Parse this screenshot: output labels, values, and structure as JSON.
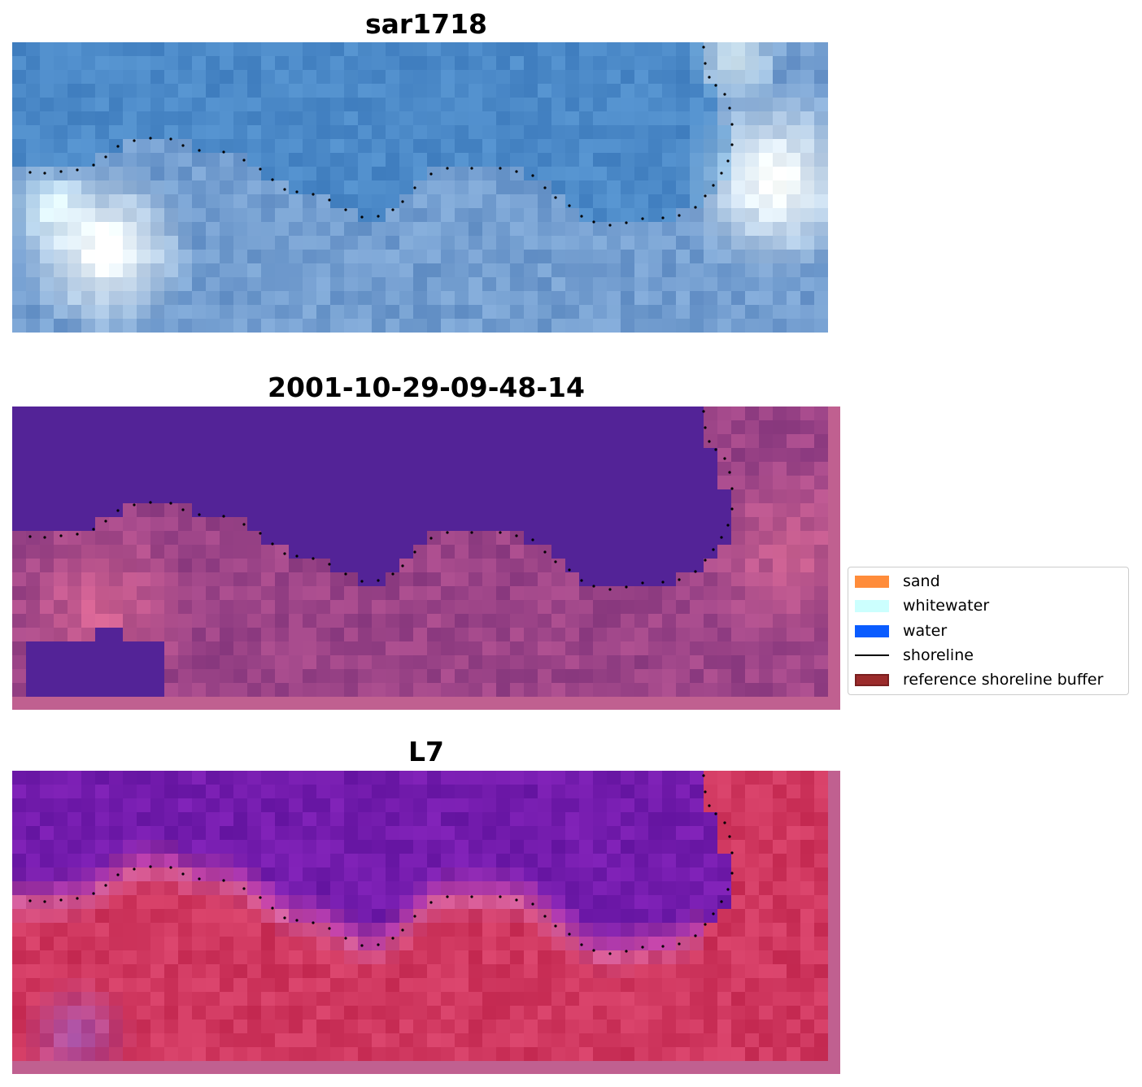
{
  "panels": [
    {
      "id": "rgb",
      "title": "sar1718",
      "content": "rgb satellite image"
    },
    {
      "id": "classified",
      "title": "2001-10-29-09-48-14",
      "content": "classified image"
    },
    {
      "id": "mndwi",
      "title": "L7",
      "content": "mndwi index image"
    }
  ],
  "legend": {
    "items": [
      {
        "label": "sand",
        "kind": "patch",
        "color": "#ff8c3a"
      },
      {
        "label": "whitewater",
        "kind": "patch",
        "color": "#ccfffe"
      },
      {
        "label": "water",
        "kind": "patch",
        "color": "#0a5cff"
      },
      {
        "label": "shoreline",
        "kind": "line",
        "color": "#000000"
      },
      {
        "label": "reference shoreline buffer",
        "kind": "patch",
        "color": "#9b2b2b"
      }
    ]
  },
  "colors": {
    "classified_water": "#532397",
    "buffer_pink": "#c06090",
    "land_purple_red": "#8a3f85",
    "mndwi_water": "#6a1a9c",
    "mndwi_land": "#c4204a",
    "rgb_water": "#3f7dc0",
    "rgb_whitecap": "#d8eef2",
    "shoreline_dots": "#000000"
  }
}
